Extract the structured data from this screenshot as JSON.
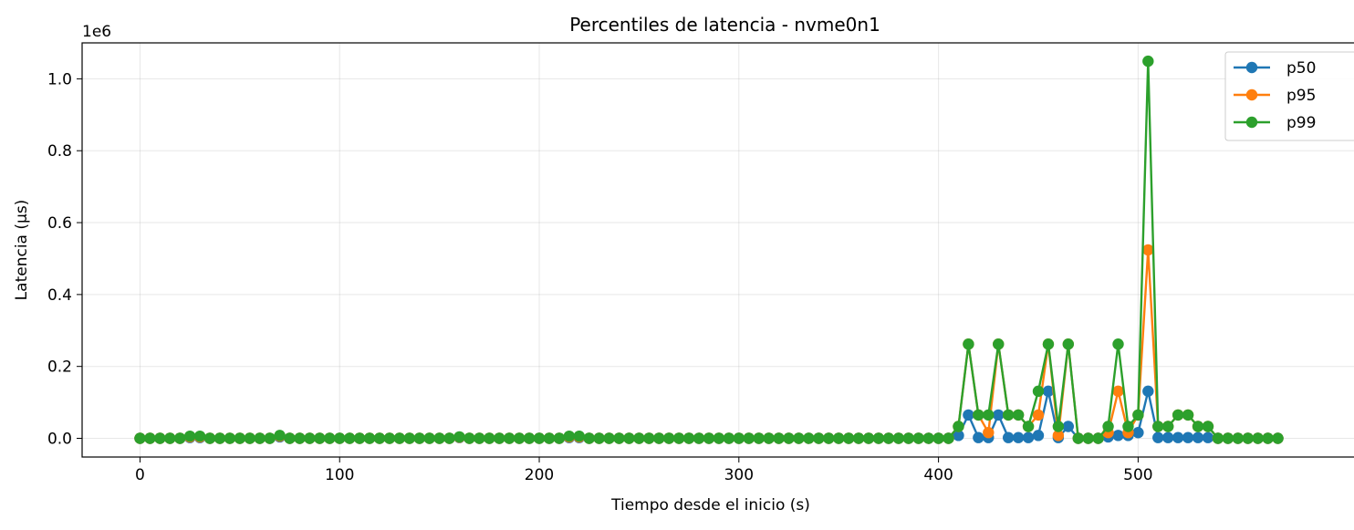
{
  "chart_data": {
    "type": "line",
    "title": "Percentiles de latencia - nvme0n1",
    "xlabel": "Tiempo desde el inicio (s)",
    "ylabel": "Latencia (µs)",
    "offset_text": "1e6",
    "xlim": [
      -29,
      615
    ],
    "ylim": [
      -0.052,
      1.1
    ],
    "y_scale_factor": 1000000,
    "x_ticks": [
      0,
      100,
      200,
      300,
      400,
      500
    ],
    "x_tick_labels": [
      "0",
      "100",
      "200",
      "300",
      "400",
      "500"
    ],
    "y_ticks": [
      0.0,
      0.2,
      0.4,
      0.6,
      0.8,
      1.0
    ],
    "y_tick_labels": [
      "0.0",
      "0.2",
      "0.4",
      "0.6",
      "0.8",
      "1.0"
    ],
    "grid": true,
    "legend_position": "top-right",
    "x": [
      0,
      5,
      10,
      15,
      20,
      25,
      30,
      35,
      40,
      45,
      50,
      55,
      60,
      65,
      70,
      75,
      80,
      85,
      90,
      95,
      100,
      105,
      110,
      115,
      120,
      125,
      130,
      135,
      140,
      145,
      150,
      155,
      160,
      165,
      170,
      175,
      180,
      185,
      190,
      195,
      200,
      205,
      210,
      215,
      220,
      225,
      230,
      235,
      240,
      245,
      250,
      255,
      260,
      265,
      270,
      275,
      280,
      285,
      290,
      295,
      300,
      305,
      310,
      315,
      320,
      325,
      330,
      335,
      340,
      345,
      350,
      355,
      360,
      365,
      370,
      375,
      380,
      385,
      390,
      395,
      400,
      405,
      410,
      415,
      420,
      425,
      430,
      435,
      440,
      445,
      450,
      455,
      460,
      465,
      470,
      475,
      480,
      485,
      490,
      495,
      500,
      505,
      510,
      515,
      520,
      525,
      530,
      535,
      540,
      545,
      550,
      555,
      560,
      565,
      570
    ],
    "series": [
      {
        "name": "p50",
        "color": "#1f77b4",
        "values": [
          0,
          0,
          0,
          0,
          0,
          0.002,
          0.002,
          0,
          0,
          0,
          0,
          0,
          0,
          0,
          0.004,
          0,
          0,
          0,
          0,
          0,
          0,
          0,
          0,
          0,
          0,
          0,
          0,
          0,
          0,
          0,
          0,
          0,
          0.002,
          0,
          0,
          0,
          0,
          0,
          0,
          0,
          0,
          0,
          0,
          0.002,
          0.002,
          0,
          0,
          0,
          0,
          0,
          0,
          0,
          0,
          0,
          0,
          0,
          0,
          0,
          0,
          0,
          0,
          0,
          0,
          0,
          0,
          0,
          0,
          0,
          0,
          0,
          0,
          0,
          0,
          0,
          0,
          0,
          0,
          0,
          0,
          0,
          0,
          0,
          0.008,
          0.065,
          0.002,
          0.002,
          0.065,
          0.002,
          0.002,
          0.002,
          0.008,
          0.131,
          0.002,
          0.033,
          0,
          0,
          0,
          0.004,
          0.008,
          0.008,
          0.016,
          0.131,
          0.002,
          0.002,
          0.002,
          0.002,
          0.002,
          0.002,
          0,
          0,
          0,
          0,
          0,
          0,
          0
        ]
      },
      {
        "name": "p95",
        "color": "#ff7f0e",
        "values": [
          0,
          0,
          0,
          0,
          0,
          0.004,
          0.004,
          0,
          0,
          0,
          0,
          0,
          0,
          0,
          0.006,
          0,
          0,
          0,
          0,
          0,
          0,
          0,
          0,
          0,
          0,
          0,
          0,
          0,
          0,
          0,
          0,
          0,
          0.003,
          0,
          0,
          0,
          0,
          0,
          0,
          0,
          0,
          0,
          0,
          0.004,
          0.004,
          0,
          0,
          0,
          0,
          0,
          0,
          0,
          0,
          0,
          0,
          0,
          0,
          0,
          0,
          0,
          0,
          0,
          0,
          0,
          0,
          0,
          0,
          0,
          0,
          0,
          0,
          0,
          0,
          0,
          0,
          0,
          0,
          0,
          0,
          0,
          0,
          0,
          0.033,
          0.262,
          0.065,
          0.016,
          0.262,
          0.065,
          0.065,
          0.033,
          0.065,
          0.262,
          0.008,
          0.262,
          0,
          0,
          0,
          0.016,
          0.131,
          0.016,
          0.065,
          0.524,
          0.033,
          0.033,
          0.065,
          0.065,
          0.033,
          0.033,
          0,
          0,
          0,
          0,
          0,
          0,
          0
        ]
      },
      {
        "name": "p99",
        "color": "#2ca02c",
        "values": [
          0,
          0,
          0,
          0,
          0,
          0.006,
          0.006,
          0,
          0,
          0,
          0,
          0,
          0,
          0,
          0.008,
          0,
          0,
          0,
          0,
          0,
          0,
          0,
          0,
          0,
          0,
          0,
          0,
          0,
          0,
          0,
          0,
          0,
          0.004,
          0,
          0,
          0,
          0,
          0,
          0,
          0,
          0,
          0,
          0,
          0.006,
          0.006,
          0,
          0,
          0,
          0,
          0,
          0,
          0,
          0,
          0,
          0,
          0,
          0,
          0,
          0,
          0,
          0,
          0,
          0,
          0,
          0,
          0,
          0,
          0,
          0,
          0,
          0,
          0,
          0,
          0,
          0,
          0,
          0,
          0,
          0,
          0,
          0,
          0,
          0.033,
          0.262,
          0.065,
          0.065,
          0.262,
          0.065,
          0.065,
          0.033,
          0.131,
          0.262,
          0.033,
          0.262,
          0,
          0,
          0,
          0.033,
          0.262,
          0.033,
          0.065,
          1.049,
          0.033,
          0.033,
          0.065,
          0.065,
          0.033,
          0.033,
          0,
          0,
          0,
          0,
          0,
          0,
          0
        ]
      }
    ]
  }
}
